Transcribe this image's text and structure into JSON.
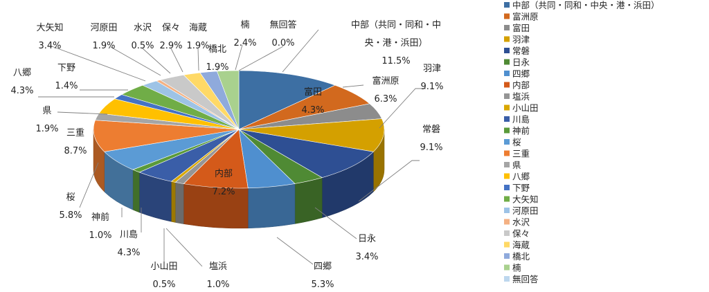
{
  "chart_data": {
    "type": "pie",
    "title": "",
    "legend_position": "right",
    "slices": [
      {
        "name": "中部（共同・同和・中央・港・浜田）",
        "value": 11.5,
        "color": "#3d6fa3"
      },
      {
        "name": "富洲原",
        "value": 6.3,
        "color": "#d2691e"
      },
      {
        "name": "富田",
        "value": 4.3,
        "color": "#8c8c8c"
      },
      {
        "name": "羽津",
        "value": 9.1,
        "color": "#d4a000"
      },
      {
        "name": "常磐",
        "value": 9.1,
        "color": "#2e4f93"
      },
      {
        "name": "日永",
        "value": 3.4,
        "color": "#4f8a34"
      },
      {
        "name": "四郷",
        "value": 5.3,
        "color": "#4f8fcf"
      },
      {
        "name": "内部",
        "value": 7.2,
        "color": "#d45a1a"
      },
      {
        "name": "塩浜",
        "value": 1.0,
        "color": "#959595"
      },
      {
        "name": "小山田",
        "value": 0.5,
        "color": "#d9a700"
      },
      {
        "name": "川島",
        "value": 4.3,
        "color": "#3a5ea8"
      },
      {
        "name": "神前",
        "value": 1.0,
        "color": "#5a9a3a"
      },
      {
        "name": "桜",
        "value": 5.8,
        "color": "#5b9bd5"
      },
      {
        "name": "三重",
        "value": 8.7,
        "color": "#ed7d31"
      },
      {
        "name": "県",
        "value": 1.9,
        "color": "#a5a5a5"
      },
      {
        "name": "八郷",
        "value": 4.3,
        "color": "#ffc000"
      },
      {
        "name": "下野",
        "value": 1.4,
        "color": "#4472c4"
      },
      {
        "name": "大矢知",
        "value": 3.4,
        "color": "#70ad47"
      },
      {
        "name": "河原田",
        "value": 1.9,
        "color": "#9dc3e6"
      },
      {
        "name": "水沢",
        "value": 0.5,
        "color": "#f4b183"
      },
      {
        "name": "保々",
        "value": 2.9,
        "color": "#c9c9c9"
      },
      {
        "name": "海蔵",
        "value": 1.9,
        "color": "#ffd966"
      },
      {
        "name": "橋北",
        "value": 1.9,
        "color": "#8faadc"
      },
      {
        "name": "楠",
        "value": 2.4,
        "color": "#a9d18e"
      },
      {
        "name": "無回答",
        "value": 0.0,
        "color": "#bdd7ee"
      }
    ],
    "labels": [
      {
        "lines": [
          "中部（共同・同和・中",
          "央・港・浜田）",
          "11.5%"
        ]
      },
      {
        "lines": [
          "富洲原",
          "6.3%"
        ]
      },
      {
        "lines": [
          "富田",
          "4.3%"
        ]
      },
      {
        "lines": [
          "羽津",
          "9.1%"
        ]
      },
      {
        "lines": [
          "常磐",
          "9.1%"
        ]
      },
      {
        "lines": [
          "日永",
          "3.4%"
        ]
      },
      {
        "lines": [
          "四郷",
          "5.3%"
        ]
      },
      {
        "lines": [
          "内部",
          "7.2%"
        ]
      },
      {
        "lines": [
          "塩浜",
          "1.0%"
        ]
      },
      {
        "lines": [
          "小山田",
          "0.5%"
        ]
      },
      {
        "lines": [
          "川島",
          "4.3%"
        ]
      },
      {
        "lines": [
          "神前",
          "1.0%"
        ]
      },
      {
        "lines": [
          "桜",
          "5.8%"
        ]
      },
      {
        "lines": [
          "三重",
          "8.7%"
        ]
      },
      {
        "lines": [
          "県",
          "1.9%"
        ]
      },
      {
        "lines": [
          "八郷",
          "4.3%"
        ]
      },
      {
        "lines": [
          "下野",
          "1.4%"
        ]
      },
      {
        "lines": [
          "大矢知",
          "3.4%"
        ]
      },
      {
        "lines": [
          "河原田",
          "1.9%"
        ]
      },
      {
        "lines": [
          "水沢",
          "0.5%"
        ]
      },
      {
        "lines": [
          "保々",
          "2.9%"
        ]
      },
      {
        "lines": [
          "海蔵",
          "1.9%"
        ]
      },
      {
        "lines": [
          "橋北",
          "1.9%"
        ]
      },
      {
        "lines": [
          "楠",
          "2.4%"
        ]
      },
      {
        "lines": [
          "無回答",
          "0.0%"
        ]
      }
    ]
  }
}
